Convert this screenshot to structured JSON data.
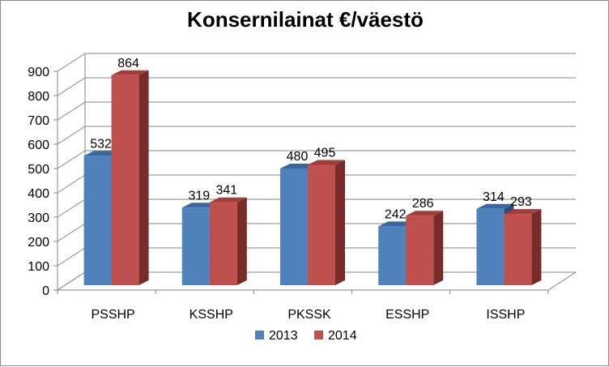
{
  "chart_data": {
    "type": "bar",
    "title": "Konsernilainat €/väestö",
    "xlabel": "",
    "ylabel": "",
    "categories": [
      "PSSHP",
      "KSSHP",
      "PKSSK",
      "ESSHP",
      "ISSHP"
    ],
    "series": [
      {
        "name": "2013",
        "values": [
          532,
          319,
          480,
          242,
          314
        ]
      },
      {
        "name": "2014",
        "values": [
          864,
          341,
          495,
          286,
          293
        ]
      }
    ],
    "ylim": [
      0,
      900
    ],
    "yticks": [
      0,
      100,
      200,
      300,
      400,
      500,
      600,
      700,
      800,
      900
    ],
    "grid": true,
    "legend": "bottom",
    "style": "3d-clustered",
    "colors": {
      "2013": {
        "front": "#4f81bd",
        "side": "#2c4d75",
        "top": "#3a679e"
      },
      "2014": {
        "front": "#c0504d",
        "side": "#772c2a",
        "top": "#a33d3a"
      }
    }
  }
}
